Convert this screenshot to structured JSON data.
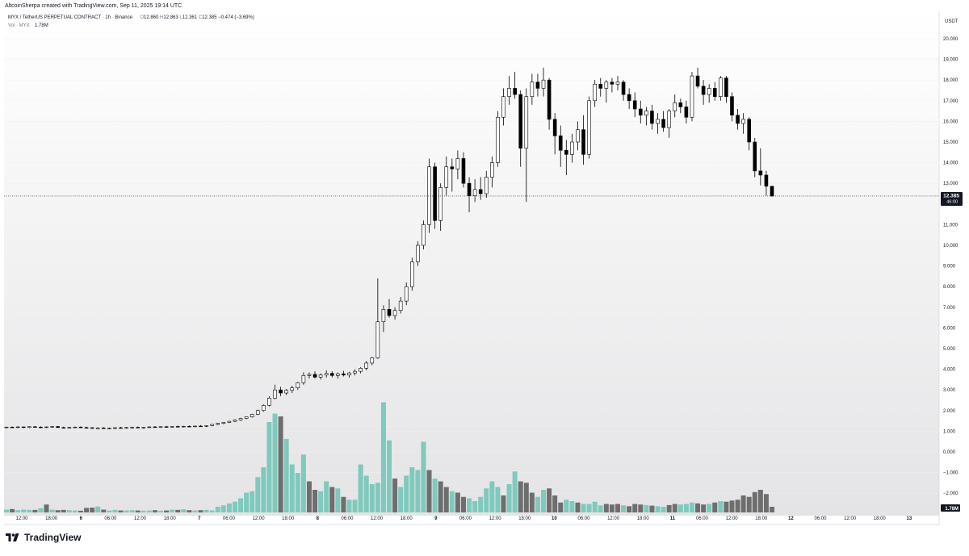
{
  "header": {
    "credit": "AltcoinSherpa created with TradingView.com, Sep 11, 2025 19:14 UTC",
    "symbol": "MYX / TetherUS PERPETUAL CONTRACT",
    "interval": "1h",
    "exchange": "Binance",
    "ohlc": {
      "open_label": "O",
      "open": "12.860",
      "high_label": "H",
      "high": "12.863",
      "low_label": "L",
      "low": "12.361",
      "close_label": "C",
      "close": "12.385",
      "change": "−0.474 (−3.69%)"
    },
    "volume_label": "Vol · MYX",
    "volume_value": "1.78M"
  },
  "price_axis": {
    "unit": "USDT",
    "ticks": [
      "20.000",
      "19.000",
      "18.000",
      "17.000",
      "16.000",
      "15.000",
      "14.000",
      "13.000",
      "12.000",
      "11.000",
      "10.000",
      "9.000",
      "8.000",
      "7.000",
      "6.000",
      "5.000",
      "4.000",
      "3.000",
      "2.000",
      "1.000",
      "0.000",
      "−1.000",
      "−2.000"
    ],
    "last_price_tag": "12.385",
    "countdown_tag": "46:00",
    "volume_tag": "1.78M"
  },
  "time_axis": {
    "ticks": [
      "12:00",
      "18:00",
      "6",
      "06:00",
      "12:00",
      "18:00",
      "7",
      "06:00",
      "12:00",
      "18:00",
      "8",
      "06:00",
      "12:00",
      "18:00",
      "9",
      "06:00",
      "12:00",
      "18:00",
      "10",
      "06:00",
      "12:00",
      "18:00",
      "11",
      "06:00",
      "12:00",
      "18:00",
      "12",
      "06:00",
      "12:00",
      "18:00",
      "13"
    ]
  },
  "brand": {
    "name": "TradingView"
  },
  "colors": {
    "up_candle_fill": "#ffffff",
    "down_candle_fill": "#000000",
    "candle_border": "#000000",
    "volume_up": "#7fc9bd",
    "volume_down": "#6e6e6e",
    "last_price_tag_bg": "#131722",
    "grid": "#eef0f3"
  },
  "chart_data": {
    "type": "candlestick",
    "title": "MYX / TetherUS PERPETUAL CONTRACT · 1h · Binance",
    "y_axis": {
      "unit": "USDT",
      "ylim": [
        -2.5,
        20.5
      ]
    },
    "last_price": 12.385,
    "volume_last": "1.78M",
    "x_axis_labels": [
      "12:00",
      "18:00",
      "6",
      "06:00",
      "12:00",
      "18:00",
      "7",
      "06:00",
      "12:00",
      "18:00",
      "8",
      "06:00",
      "12:00",
      "18:00",
      "9",
      "06:00",
      "12:00",
      "18:00",
      "10",
      "06:00",
      "12:00",
      "18:00",
      "11",
      "06:00",
      "12:00",
      "18:00",
      "12",
      "06:00",
      "12:00",
      "18:00",
      "13"
    ],
    "key_points": [
      {
        "time": "Sep 5 12:00",
        "close": 1.2
      },
      {
        "time": "Sep 6 12:00",
        "close": 1.15
      },
      {
        "time": "Sep 7 06:00",
        "close": 1.4
      },
      {
        "time": "Sep 7 18:00",
        "close": 3.0
      },
      {
        "time": "Sep 8 06:00",
        "close": 3.9
      },
      {
        "time": "Sep 8 12:00",
        "close": 7.0
      },
      {
        "time": "Sep 8 18:00",
        "close": 11.0
      },
      {
        "time": "Sep 9 06:00",
        "close": 17.0
      },
      {
        "time": "Sep 9 18:00",
        "close": 18.0
      },
      {
        "time": "Sep 10 06:00",
        "close": 17.9
      },
      {
        "time": "Sep 10 18:00",
        "close": 15.9
      },
      {
        "time": "Sep 11 06:00",
        "close": 18.0
      },
      {
        "time": "Sep 11 18:00",
        "close": 12.385
      }
    ],
    "candles": [
      [
        1.18,
        1.22,
        1.15,
        1.2
      ],
      [
        1.2,
        1.23,
        1.16,
        1.19
      ],
      [
        1.19,
        1.24,
        1.15,
        1.21
      ],
      [
        1.21,
        1.23,
        1.16,
        1.18
      ],
      [
        1.18,
        1.24,
        1.15,
        1.22
      ],
      [
        1.22,
        1.25,
        1.17,
        1.2
      ],
      [
        1.2,
        1.24,
        1.16,
        1.19
      ],
      [
        1.19,
        1.23,
        1.15,
        1.21
      ],
      [
        1.21,
        1.26,
        1.17,
        1.23
      ],
      [
        1.23,
        1.25,
        1.16,
        1.18
      ],
      [
        1.18,
        1.22,
        1.14,
        1.17
      ],
      [
        1.17,
        1.21,
        1.13,
        1.19
      ],
      [
        1.19,
        1.23,
        1.15,
        1.2
      ],
      [
        1.2,
        1.24,
        1.16,
        1.18
      ],
      [
        1.18,
        1.22,
        1.14,
        1.17
      ],
      [
        1.17,
        1.2,
        1.12,
        1.15
      ],
      [
        1.15,
        1.19,
        1.11,
        1.16
      ],
      [
        1.16,
        1.2,
        1.12,
        1.14
      ],
      [
        1.14,
        1.18,
        1.1,
        1.15
      ],
      [
        1.15,
        1.19,
        1.11,
        1.17
      ],
      [
        1.17,
        1.21,
        1.13,
        1.16
      ],
      [
        1.16,
        1.2,
        1.12,
        1.18
      ],
      [
        1.18,
        1.22,
        1.14,
        1.19
      ],
      [
        1.19,
        1.23,
        1.15,
        1.17
      ],
      [
        1.17,
        1.21,
        1.13,
        1.19
      ],
      [
        1.19,
        1.24,
        1.15,
        1.21
      ],
      [
        1.21,
        1.25,
        1.17,
        1.2
      ],
      [
        1.2,
        1.24,
        1.16,
        1.22
      ],
      [
        1.22,
        1.26,
        1.18,
        1.21
      ],
      [
        1.21,
        1.25,
        1.17,
        1.23
      ],
      [
        1.23,
        1.27,
        1.19,
        1.22
      ],
      [
        1.22,
        1.26,
        1.18,
        1.24
      ],
      [
        1.24,
        1.28,
        1.2,
        1.23
      ],
      [
        1.23,
        1.27,
        1.19,
        1.25
      ],
      [
        1.25,
        1.3,
        1.21,
        1.24
      ],
      [
        1.24,
        1.29,
        1.2,
        1.27
      ],
      [
        1.27,
        1.35,
        1.24,
        1.33
      ],
      [
        1.33,
        1.4,
        1.29,
        1.38
      ],
      [
        1.38,
        1.45,
        1.34,
        1.43
      ],
      [
        1.43,
        1.5,
        1.39,
        1.48
      ],
      [
        1.48,
        1.58,
        1.44,
        1.55
      ],
      [
        1.55,
        1.65,
        1.5,
        1.62
      ],
      [
        1.62,
        1.72,
        1.58,
        1.7
      ],
      [
        1.7,
        1.85,
        1.66,
        1.82
      ],
      [
        1.82,
        2.05,
        1.78,
        2.0
      ],
      [
        2.0,
        2.3,
        1.95,
        2.25
      ],
      [
        2.25,
        2.7,
        2.2,
        2.6
      ],
      [
        2.6,
        3.25,
        2.55,
        3.0
      ],
      [
        3.0,
        3.15,
        2.7,
        2.85
      ],
      [
        2.85,
        3.05,
        2.75,
        2.98
      ],
      [
        2.98,
        3.2,
        2.85,
        3.1
      ],
      [
        3.1,
        3.4,
        3.0,
        3.35
      ],
      [
        3.35,
        3.85,
        3.25,
        3.7
      ],
      [
        3.7,
        3.85,
        3.55,
        3.75
      ],
      [
        3.75,
        3.9,
        3.55,
        3.62
      ],
      [
        3.62,
        3.8,
        3.5,
        3.72
      ],
      [
        3.72,
        3.95,
        3.6,
        3.8
      ],
      [
        3.8,
        3.9,
        3.6,
        3.7
      ],
      [
        3.7,
        3.85,
        3.55,
        3.78
      ],
      [
        3.78,
        3.92,
        3.65,
        3.72
      ],
      [
        3.72,
        3.88,
        3.6,
        3.82
      ],
      [
        3.82,
        4.0,
        3.7,
        3.9
      ],
      [
        3.9,
        4.1,
        3.8,
        4.05
      ],
      [
        4.05,
        4.4,
        3.95,
        4.3
      ],
      [
        4.3,
        4.6,
        4.2,
        4.55
      ],
      [
        4.55,
        8.4,
        4.5,
        6.3
      ],
      [
        6.3,
        7.1,
        5.8,
        6.9
      ],
      [
        6.9,
        7.4,
        6.5,
        6.6
      ],
      [
        6.6,
        7.0,
        6.4,
        6.85
      ],
      [
        6.85,
        7.5,
        6.7,
        7.3
      ],
      [
        7.3,
        8.2,
        7.1,
        8.0
      ],
      [
        8.0,
        9.4,
        7.8,
        9.2
      ],
      [
        9.2,
        10.2,
        9.0,
        10.0
      ],
      [
        10.0,
        11.2,
        9.8,
        11.0
      ],
      [
        11.0,
        14.2,
        10.6,
        13.8
      ],
      [
        13.8,
        14.0,
        10.8,
        11.2
      ],
      [
        11.2,
        13.0,
        10.7,
        12.8
      ],
      [
        12.8,
        14.3,
        12.4,
        13.8
      ],
      [
        13.8,
        14.2,
        12.6,
        13.7
      ],
      [
        13.7,
        14.6,
        13.2,
        14.2
      ],
      [
        14.2,
        14.5,
        12.8,
        13.0
      ],
      [
        13.0,
        13.3,
        11.6,
        12.4
      ],
      [
        12.4,
        13.2,
        12.1,
        12.7
      ],
      [
        12.7,
        13.3,
        12.2,
        12.5
      ],
      [
        12.5,
        13.6,
        12.3,
        13.3
      ],
      [
        13.3,
        14.3,
        12.8,
        14.0
      ],
      [
        14.0,
        16.5,
        13.8,
        16.2
      ],
      [
        16.2,
        17.6,
        15.8,
        17.2
      ],
      [
        17.2,
        18.2,
        16.8,
        17.6
      ],
      [
        17.6,
        18.4,
        17.1,
        17.3
      ],
      [
        17.3,
        17.5,
        13.8,
        14.7
      ],
      [
        14.7,
        17.6,
        12.1,
        17.2
      ],
      [
        17.2,
        18.3,
        16.8,
        17.9
      ],
      [
        17.9,
        18.3,
        17.2,
        17.6
      ],
      [
        17.6,
        18.6,
        17.2,
        18.0
      ],
      [
        18.0,
        18.1,
        15.6,
        16.1
      ],
      [
        16.1,
        16.4,
        14.4,
        15.3
      ],
      [
        15.3,
        15.8,
        13.8,
        14.6
      ],
      [
        14.6,
        15.1,
        13.4,
        14.4
      ],
      [
        14.4,
        15.4,
        14.0,
        15.0
      ],
      [
        15.0,
        16.0,
        14.6,
        15.6
      ],
      [
        15.6,
        16.3,
        13.9,
        14.4
      ],
      [
        14.4,
        17.2,
        14.2,
        17.0
      ],
      [
        17.0,
        18.0,
        16.7,
        17.8
      ],
      [
        17.8,
        18.1,
        17.2,
        17.6
      ],
      [
        17.6,
        18.0,
        16.9,
        17.9
      ],
      [
        17.9,
        18.1,
        17.4,
        17.8
      ],
      [
        17.8,
        18.2,
        17.5,
        17.9
      ],
      [
        17.9,
        18.0,
        17.0,
        17.3
      ],
      [
        17.3,
        17.6,
        16.6,
        17.0
      ],
      [
        17.0,
        17.4,
        16.2,
        16.6
      ],
      [
        16.6,
        17.0,
        15.9,
        16.3
      ],
      [
        16.3,
        16.7,
        15.8,
        16.5
      ],
      [
        16.5,
        16.8,
        15.6,
        15.9
      ],
      [
        15.9,
        16.4,
        15.4,
        16.1
      ],
      [
        16.1,
        16.5,
        15.5,
        15.7
      ],
      [
        15.7,
        16.6,
        15.2,
        16.5
      ],
      [
        16.5,
        17.3,
        16.2,
        16.9
      ],
      [
        16.9,
        17.1,
        16.4,
        16.7
      ],
      [
        16.7,
        17.0,
        15.9,
        16.2
      ],
      [
        16.2,
        18.4,
        16.0,
        18.2
      ],
      [
        18.2,
        18.6,
        17.6,
        17.7
      ],
      [
        17.7,
        18.0,
        16.8,
        17.3
      ],
      [
        17.3,
        17.8,
        16.9,
        17.6
      ],
      [
        17.6,
        17.9,
        17.0,
        17.2
      ],
      [
        17.2,
        18.2,
        17.0,
        18.1
      ],
      [
        18.1,
        18.2,
        16.9,
        17.2
      ],
      [
        17.2,
        17.4,
        16.0,
        16.3
      ],
      [
        16.3,
        16.6,
        15.6,
        15.9
      ],
      [
        15.9,
        16.4,
        15.4,
        16.1
      ],
      [
        16.1,
        16.2,
        14.6,
        15.0
      ],
      [
        15.0,
        15.2,
        13.3,
        13.6
      ],
      [
        13.6,
        14.7,
        12.9,
        13.4
      ],
      [
        13.4,
        13.6,
        12.4,
        12.86
      ],
      [
        12.86,
        12.86,
        12.36,
        12.385
      ]
    ],
    "volume": [
      0.1,
      0.12,
      0.08,
      0.1,
      0.09,
      0.09,
      0.15,
      0.28,
      0.1,
      0.08,
      0.09,
      0.08,
      0.07,
      0.06,
      0.16,
      0.17,
      0.21,
      0.1,
      0.07,
      0.09,
      0.07,
      0.07,
      0.08,
      0.07,
      0.06,
      0.07,
      0.08,
      0.06,
      0.07,
      0.1,
      0.09,
      0.11,
      0.08,
      0.07,
      0.08,
      0.09,
      0.07,
      0.2,
      0.25,
      0.32,
      0.38,
      0.5,
      0.7,
      0.75,
      1.25,
      1.6,
      3.2,
      3.5,
      3.4,
      2.6,
      1.7,
      1.4,
      2.05,
      1.1,
      0.8,
      0.75,
      1.1,
      0.9,
      0.85,
      0.55,
      0.45,
      0.45,
      1.7,
      1.3,
      1.0,
      1.05,
      3.9,
      2.55,
      1.2,
      0.9,
      1.3,
      1.6,
      1.5,
      2.5,
      1.5,
      1.2,
      1.1,
      0.9,
      0.75,
      0.7,
      0.55,
      0.5,
      0.4,
      0.55,
      0.85,
      1.1,
      0.9,
      0.6,
      1.0,
      1.45,
      1.1,
      1.05,
      0.7,
      0.55,
      0.8,
      0.85,
      0.6,
      0.35,
      0.45,
      0.4,
      0.35,
      0.3,
      0.3,
      0.38,
      0.25,
      0.3,
      0.28,
      0.3,
      0.25,
      0.22,
      0.3,
      0.28,
      0.26,
      0.24,
      0.22,
      0.2,
      0.26,
      0.3,
      0.28,
      0.3,
      0.35,
      0.32,
      0.28,
      0.3,
      0.35,
      0.4,
      0.38,
      0.42,
      0.45,
      0.6,
      0.55,
      0.72,
      0.8,
      0.65,
      0.2
    ],
    "volume_down_flags": [
      0,
      1,
      0,
      0,
      0,
      1,
      0,
      1,
      0,
      1,
      1,
      0,
      0,
      1,
      1,
      1,
      0,
      1,
      0,
      0,
      1,
      0,
      0,
      1,
      0,
      0,
      1,
      0,
      1,
      0,
      1,
      0,
      1,
      0,
      1,
      0,
      0,
      0,
      0,
      0,
      0,
      0,
      0,
      0,
      0,
      0,
      0,
      0,
      1,
      0,
      0,
      0,
      0,
      1,
      1,
      0,
      0,
      1,
      0,
      1,
      0,
      0,
      0,
      0,
      0,
      0,
      0,
      0,
      1,
      0,
      0,
      0,
      0,
      0,
      1,
      0,
      1,
      1,
      0,
      1,
      1,
      0,
      0,
      0,
      0,
      0,
      0,
      1,
      0,
      0,
      1,
      1,
      1,
      0,
      0,
      1,
      1,
      1,
      0,
      0,
      1,
      0,
      0,
      0,
      0,
      1,
      1,
      1,
      0,
      1,
      1,
      1,
      0,
      1,
      0,
      0,
      1,
      1,
      0,
      0,
      0,
      1,
      1,
      0,
      1,
      0,
      1,
      1,
      1,
      1,
      1,
      1,
      1,
      1,
      1
    ]
  }
}
